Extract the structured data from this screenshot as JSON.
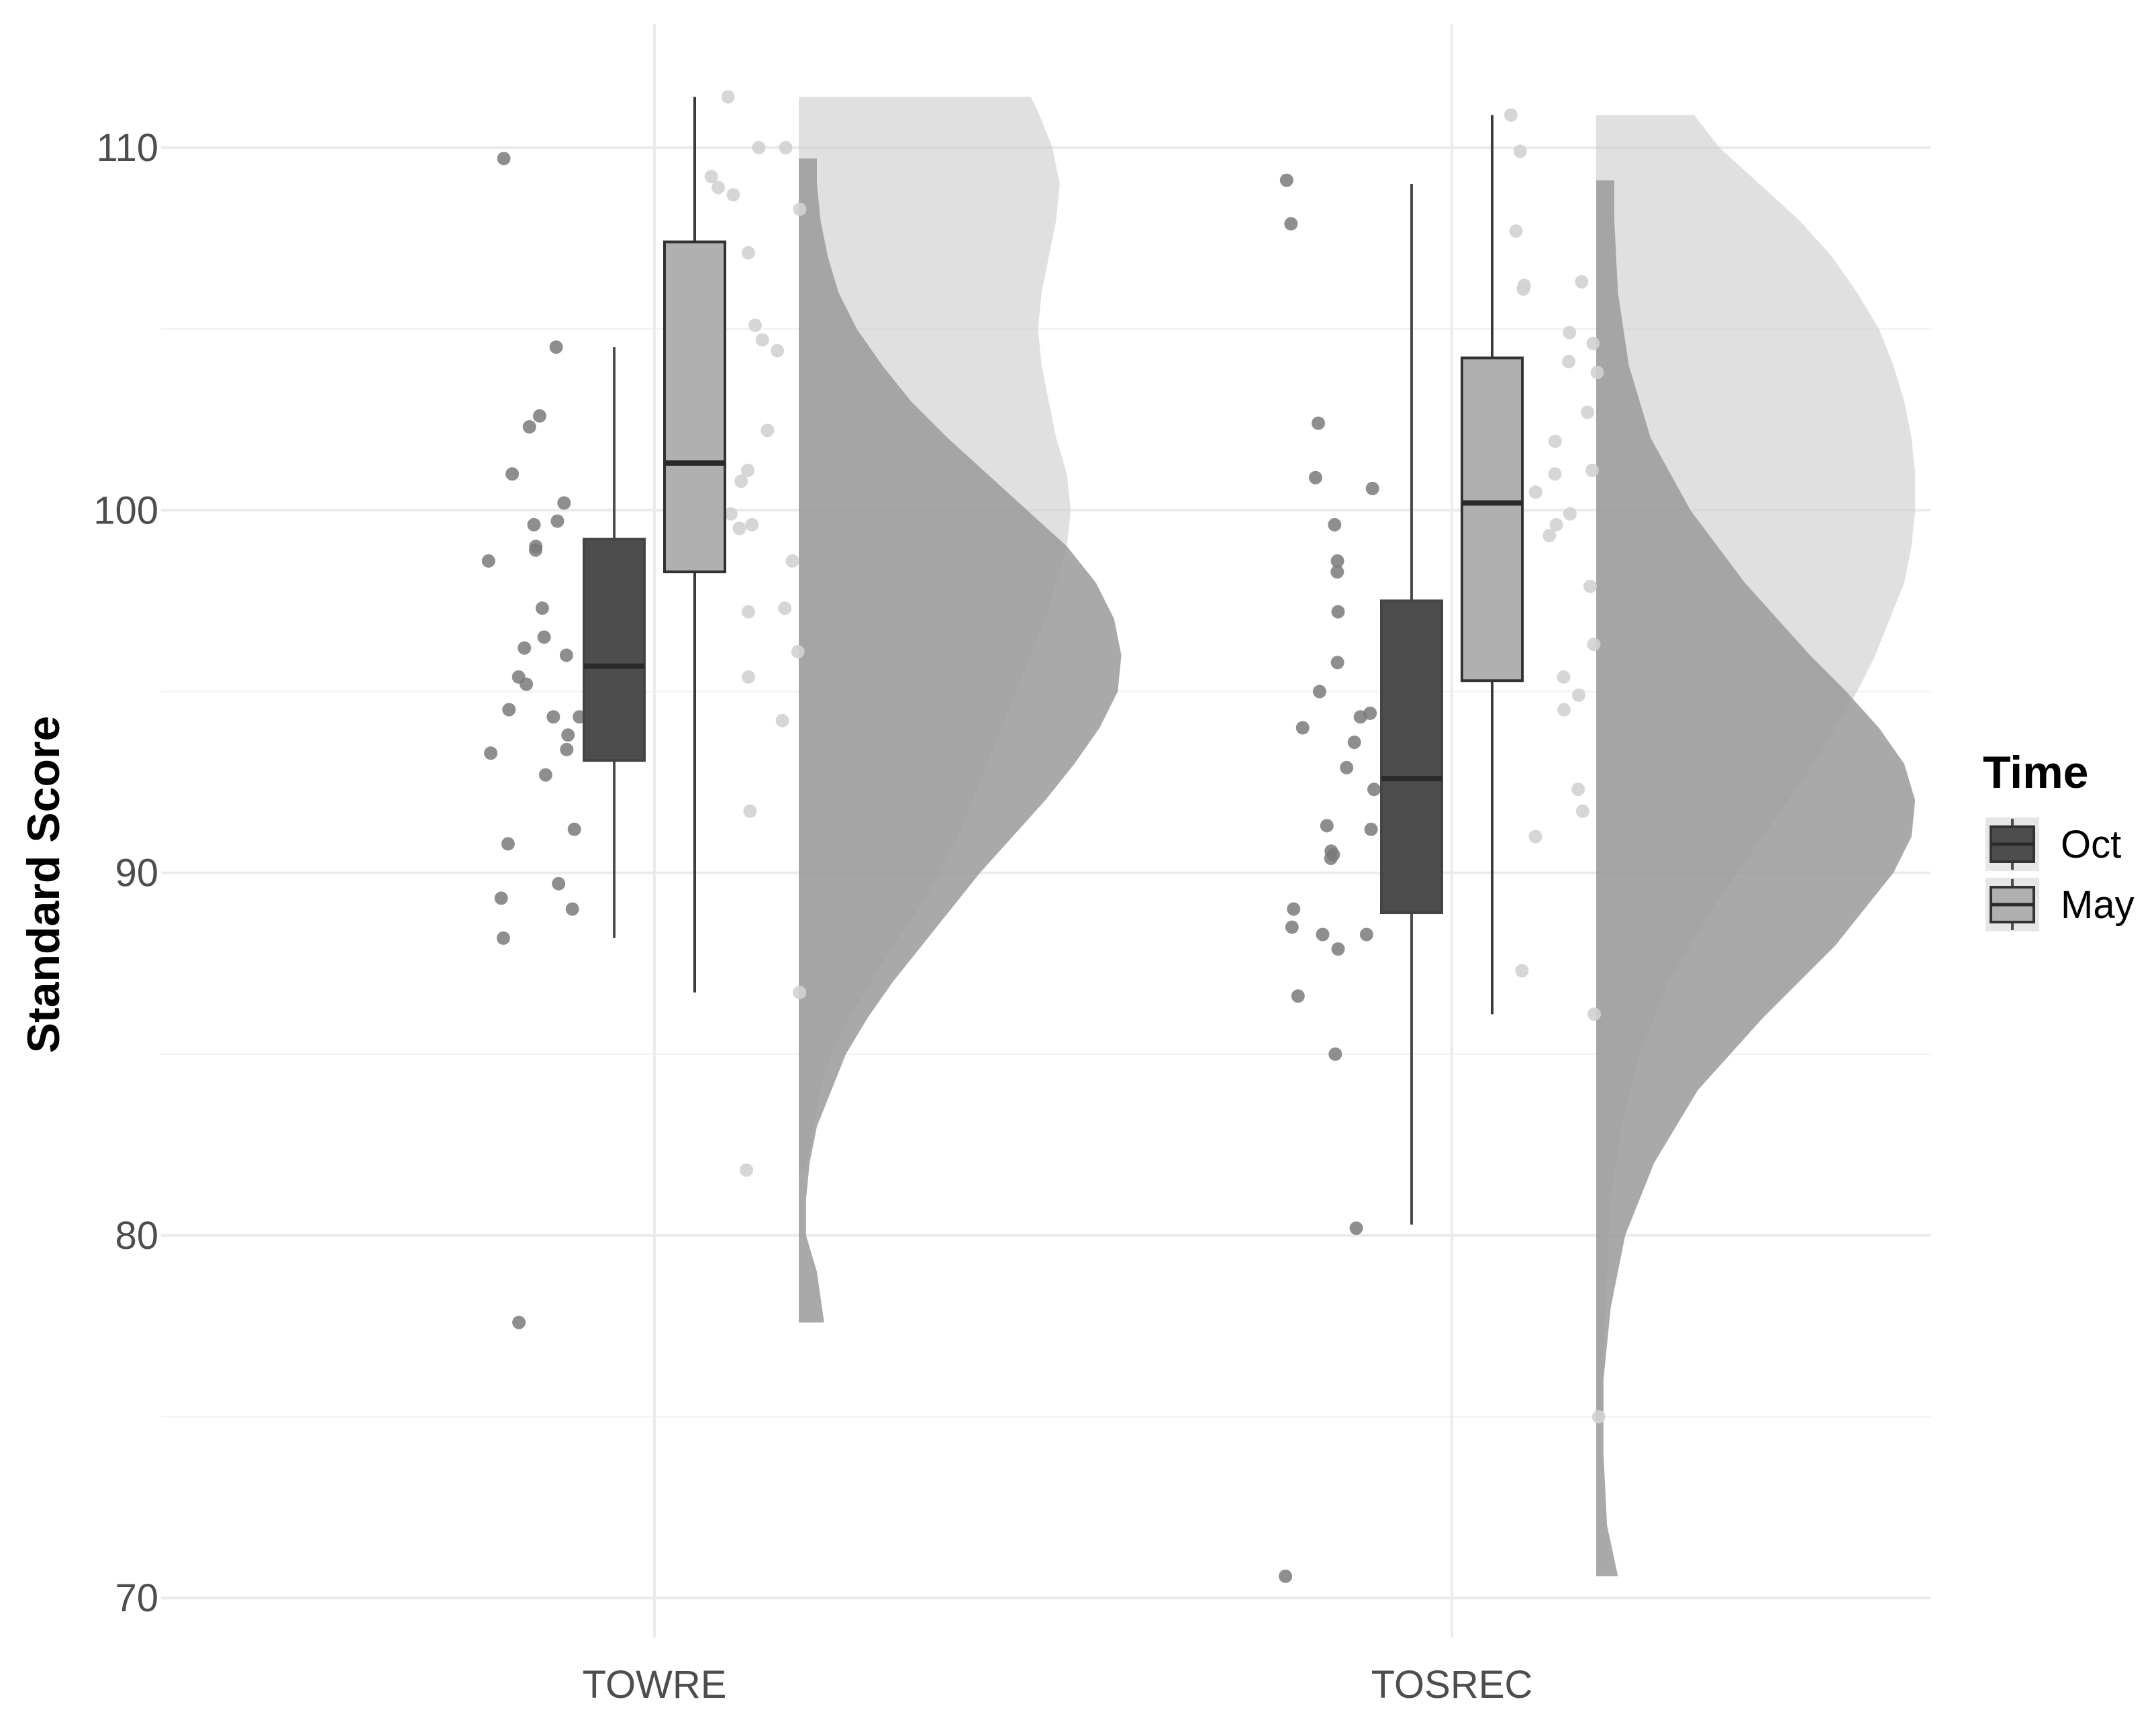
{
  "chart_data": {
    "type": "raincloud",
    "title": "",
    "xlabel": "",
    "ylabel": "Standard Score",
    "ylim": [
      68.5,
      112.8
    ],
    "yticks": [
      70,
      80,
      90,
      100,
      110
    ],
    "categories": [
      "TOWRE",
      "TOSREC"
    ],
    "grid": true,
    "legend": {
      "title": "Time",
      "position": "right",
      "entries": [
        "Oct",
        "May"
      ]
    },
    "colors": {
      "Oct": "#4d4d4d",
      "May": "#b0b0b0",
      "oct_density": "#9a9a9a",
      "may_density": "#cccccc",
      "oct_points": "#7a7a7a",
      "may_points": "#d2d2d2"
    },
    "series": [
      {
        "name": "Oct",
        "boxes": [
          {
            "category": "TOWRE",
            "min": 88.2,
            "q1": 93.1,
            "median": 95.7,
            "q3": 99.2,
            "max": 104.5
          },
          {
            "category": "TOSREC",
            "min": 80.3,
            "q1": 88.9,
            "median": 92.6,
            "q3": 97.5,
            "max": 109.0
          }
        ],
        "points": [
          {
            "category": "TOWRE",
            "values": [
              109.7,
              104.5,
              102.6,
              102.3,
              101.0,
              100.2,
              99.7,
              99.6,
              99.0,
              98.9,
              98.6,
              97.3,
              96.5,
              96.2,
              96.0,
              95.4,
              95.2,
              94.5,
              94.3,
              94.3,
              93.8,
              93.4,
              93.3,
              92.7,
              91.2,
              90.8,
              89.7,
              89.3,
              89.0,
              88.2,
              77.6
            ]
          },
          {
            "category": "TOSREC",
            "values": [
              109.1,
              107.9,
              102.4,
              100.9,
              100.6,
              99.6,
              98.6,
              98.3,
              97.2,
              95.8,
              95.0,
              94.4,
              94.3,
              94.0,
              93.6,
              92.9,
              92.3,
              91.3,
              91.2,
              90.6,
              90.5,
              90.4,
              89.0,
              88.5,
              88.3,
              88.3,
              87.9,
              86.6,
              85.0,
              80.2,
              70.6
            ]
          }
        ],
        "density": [
          {
            "category": "TOWRE",
            "y": [
              77.6,
              79,
              80,
              81,
              82,
              83,
              84,
              85,
              86,
              87,
              88,
              89,
              90,
              91,
              92,
              93,
              94,
              95,
              96,
              97,
              98,
              99,
              100,
              101,
              102,
              103,
              104,
              105,
              106,
              107,
              108,
              109,
              109.7
            ],
            "width": [
              0.07,
              0.05,
              0.02,
              0.02,
              0.03,
              0.05,
              0.09,
              0.13,
              0.19,
              0.26,
              0.34,
              0.42,
              0.5,
              0.59,
              0.68,
              0.76,
              0.83,
              0.88,
              0.89,
              0.87,
              0.82,
              0.74,
              0.63,
              0.52,
              0.41,
              0.31,
              0.23,
              0.16,
              0.11,
              0.08,
              0.06,
              0.05,
              0.05
            ]
          },
          {
            "category": "TOSREC",
            "y": [
              70.6,
              72,
              74,
              76,
              78,
              80,
              82,
              84,
              86,
              88,
              90,
              91,
              92,
              93,
              94,
              95,
              96,
              98,
              100,
              102,
              104,
              106,
              108,
              109.1
            ],
            "width": [
              0.06,
              0.03,
              0.02,
              0.02,
              0.04,
              0.08,
              0.16,
              0.28,
              0.46,
              0.66,
              0.82,
              0.87,
              0.88,
              0.85,
              0.78,
              0.69,
              0.59,
              0.41,
              0.26,
              0.15,
              0.09,
              0.06,
              0.05,
              0.05
            ]
          }
        ]
      },
      {
        "name": "May",
        "boxes": [
          {
            "category": "TOWRE",
            "min": 86.7,
            "q1": 98.3,
            "median": 101.3,
            "q3": 107.4,
            "max": 111.4
          },
          {
            "category": "TOSREC",
            "min": 86.1,
            "q1": 95.3,
            "median": 100.2,
            "q3": 104.2,
            "max": 110.9
          }
        ],
        "points": [
          {
            "category": "TOWRE",
            "values": [
              111.4,
              110.0,
              110.0,
              109.2,
              108.9,
              108.7,
              108.3,
              107.1,
              106.9,
              105.1,
              104.7,
              104.4,
              102.2,
              101.3,
              101.1,
              100.8,
              99.9,
              99.6,
              99.5,
              98.6,
              97.3,
              97.2,
              96.1,
              95.4,
              94.2,
              91.7,
              86.7,
              81.8
            ]
          },
          {
            "category": "TOSREC",
            "values": [
              110.9,
              109.9,
              107.7,
              106.3,
              106.2,
              106.1,
              104.9,
              104.6,
              104.1,
              103.8,
              102.7,
              101.9,
              101.1,
              101.0,
              100.5,
              99.9,
              99.6,
              99.3,
              98.3,
              97.9,
              96.3,
              95.4,
              94.9,
              94.5,
              92.3,
              91.7,
              91.0,
              87.3,
              86.1,
              75.0
            ]
          }
        ],
        "density": [
          {
            "category": "TOWRE",
            "y": [
              81.8,
              83,
              84,
              85,
              86,
              87,
              88,
              89,
              90,
              91,
              92,
              93,
              94,
              95,
              96,
              97,
              98,
              99,
              100,
              101,
              102,
              103,
              104,
              105,
              106,
              107,
              108,
              109,
              110,
              111,
              111.4
            ],
            "width": [
              0.02,
              0.04,
              0.06,
              0.09,
              0.14,
              0.2,
              0.26,
              0.33,
              0.39,
              0.44,
              0.48,
              0.52,
              0.56,
              0.6,
              0.64,
              0.68,
              0.71,
              0.74,
              0.75,
              0.74,
              0.71,
              0.69,
              0.67,
              0.66,
              0.67,
              0.69,
              0.71,
              0.72,
              0.7,
              0.66,
              0.64
            ]
          },
          {
            "category": "TOSREC",
            "y": [
              75.0,
              77,
              79,
              81,
              83,
              85,
              87,
              89,
              90,
              91,
              92,
              93,
              94,
              95,
              96,
              97,
              98,
              99,
              100,
              101,
              102,
              103,
              104,
              105,
              106,
              107,
              108,
              109,
              110,
              110.9
            ],
            "width": [
              0.02,
              0.02,
              0.03,
              0.04,
              0.07,
              0.12,
              0.2,
              0.32,
              0.39,
              0.46,
              0.53,
              0.6,
              0.66,
              0.72,
              0.77,
              0.81,
              0.85,
              0.87,
              0.88,
              0.88,
              0.87,
              0.85,
              0.82,
              0.78,
              0.72,
              0.65,
              0.56,
              0.45,
              0.34,
              0.27
            ]
          }
        ]
      }
    ]
  }
}
